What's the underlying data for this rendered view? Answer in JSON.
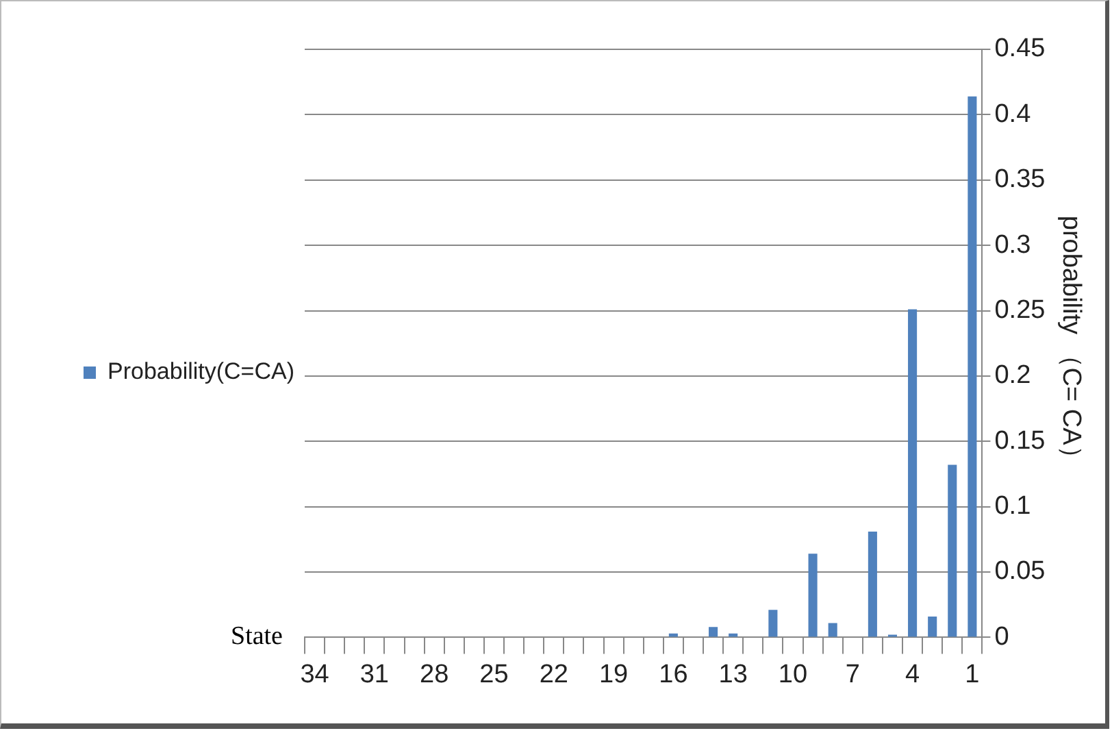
{
  "chart_data": {
    "type": "bar",
    "xlabel": "State",
    "ylabel": "probability （C= CA）",
    "categories": [
      "34",
      null,
      null,
      "31",
      null,
      null,
      "28",
      null,
      null,
      "25",
      null,
      null,
      "22",
      null,
      null,
      "19",
      null,
      null,
      "16",
      null,
      null,
      "13",
      null,
      null,
      "10",
      null,
      null,
      "7",
      null,
      null,
      "4",
      null,
      null,
      "1"
    ],
    "series": [
      {
        "name": "Probability(C=CA)",
        "color": "#4f81bd",
        "values": [
          0,
          0,
          0,
          0,
          0,
          0,
          0,
          0,
          0,
          0,
          0,
          0,
          0,
          0,
          0,
          0,
          0,
          0,
          0.003,
          0,
          0.008,
          0.003,
          0,
          0.021,
          0,
          0.064,
          0.011,
          0,
          0.081,
          0.002,
          0.251,
          0.016,
          0.132,
          0.414
        ]
      }
    ],
    "ylim": [
      0,
      0.45
    ],
    "yticks": [
      0,
      0.05,
      0.1,
      0.15,
      0.2,
      0.25,
      0.3,
      0.35,
      0.4,
      0.45
    ],
    "grid": "y",
    "legend": "left"
  }
}
